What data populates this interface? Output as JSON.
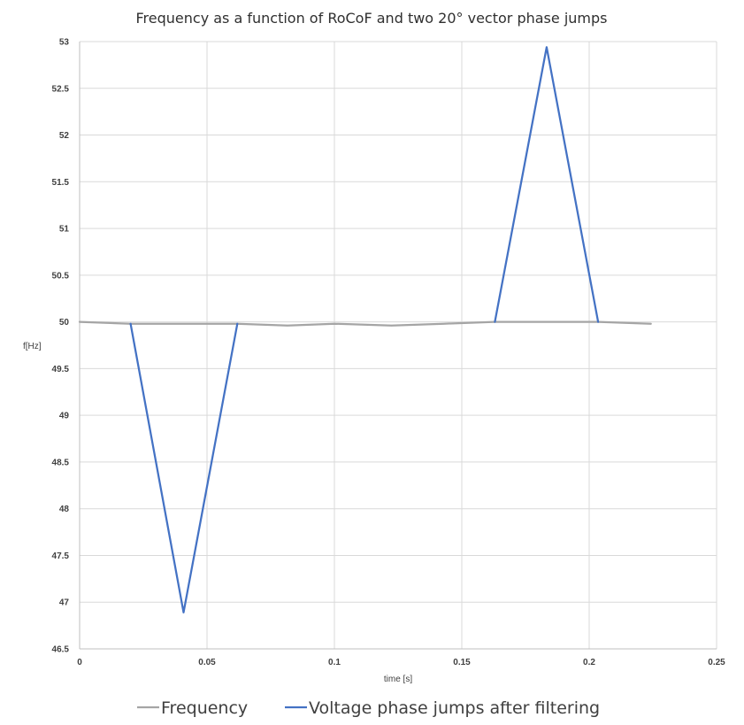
{
  "chart_data": {
    "type": "line",
    "title": "Frequency as a function of RoCoF and two 20° vector phase jumps",
    "xlabel": "time [s]",
    "ylabel": "f[Hz]",
    "xlim": [
      0,
      0.25
    ],
    "ylim": [
      46.5,
      53
    ],
    "x_ticks": [
      0,
      0.05,
      0.1,
      0.15,
      0.2,
      0.25
    ],
    "x_tick_labels": [
      "0",
      "0.05",
      "0.1",
      "0.15",
      "0.2",
      "0.25"
    ],
    "y_ticks": [
      46.5,
      47,
      47.5,
      48,
      48.5,
      49,
      49.5,
      50,
      50.5,
      51,
      51.5,
      52,
      52.5,
      53
    ],
    "y_tick_labels": [
      "46.5",
      "47",
      "47.5",
      "48",
      "48.5",
      "49",
      "49.5",
      "50",
      "50.5",
      "51",
      "51.5",
      "52",
      "52.5",
      "53"
    ],
    "grid": true,
    "legend_position": "bottom",
    "series": [
      {
        "name": "Frequency",
        "color": "#A5A5A5",
        "x": [
          0,
          0.02,
          0.0408,
          0.0619,
          0.0816,
          0.1,
          0.1224,
          0.1429,
          0.163,
          0.1833,
          0.2035,
          0.2242
        ],
        "y": [
          50.0,
          49.98,
          49.98,
          49.98,
          49.96,
          49.98,
          49.96,
          49.98,
          50.0,
          50.0,
          50.0,
          49.98
        ]
      },
      {
        "name": "Voltage phase jumps after filtering",
        "color": "#4472C4",
        "x": [
          0.02,
          0.0408,
          0.0619,
          null,
          0.163,
          0.1833,
          0.2035
        ],
        "y": [
          49.98,
          46.89,
          49.98,
          null,
          50.0,
          52.94,
          50.0
        ]
      }
    ]
  }
}
